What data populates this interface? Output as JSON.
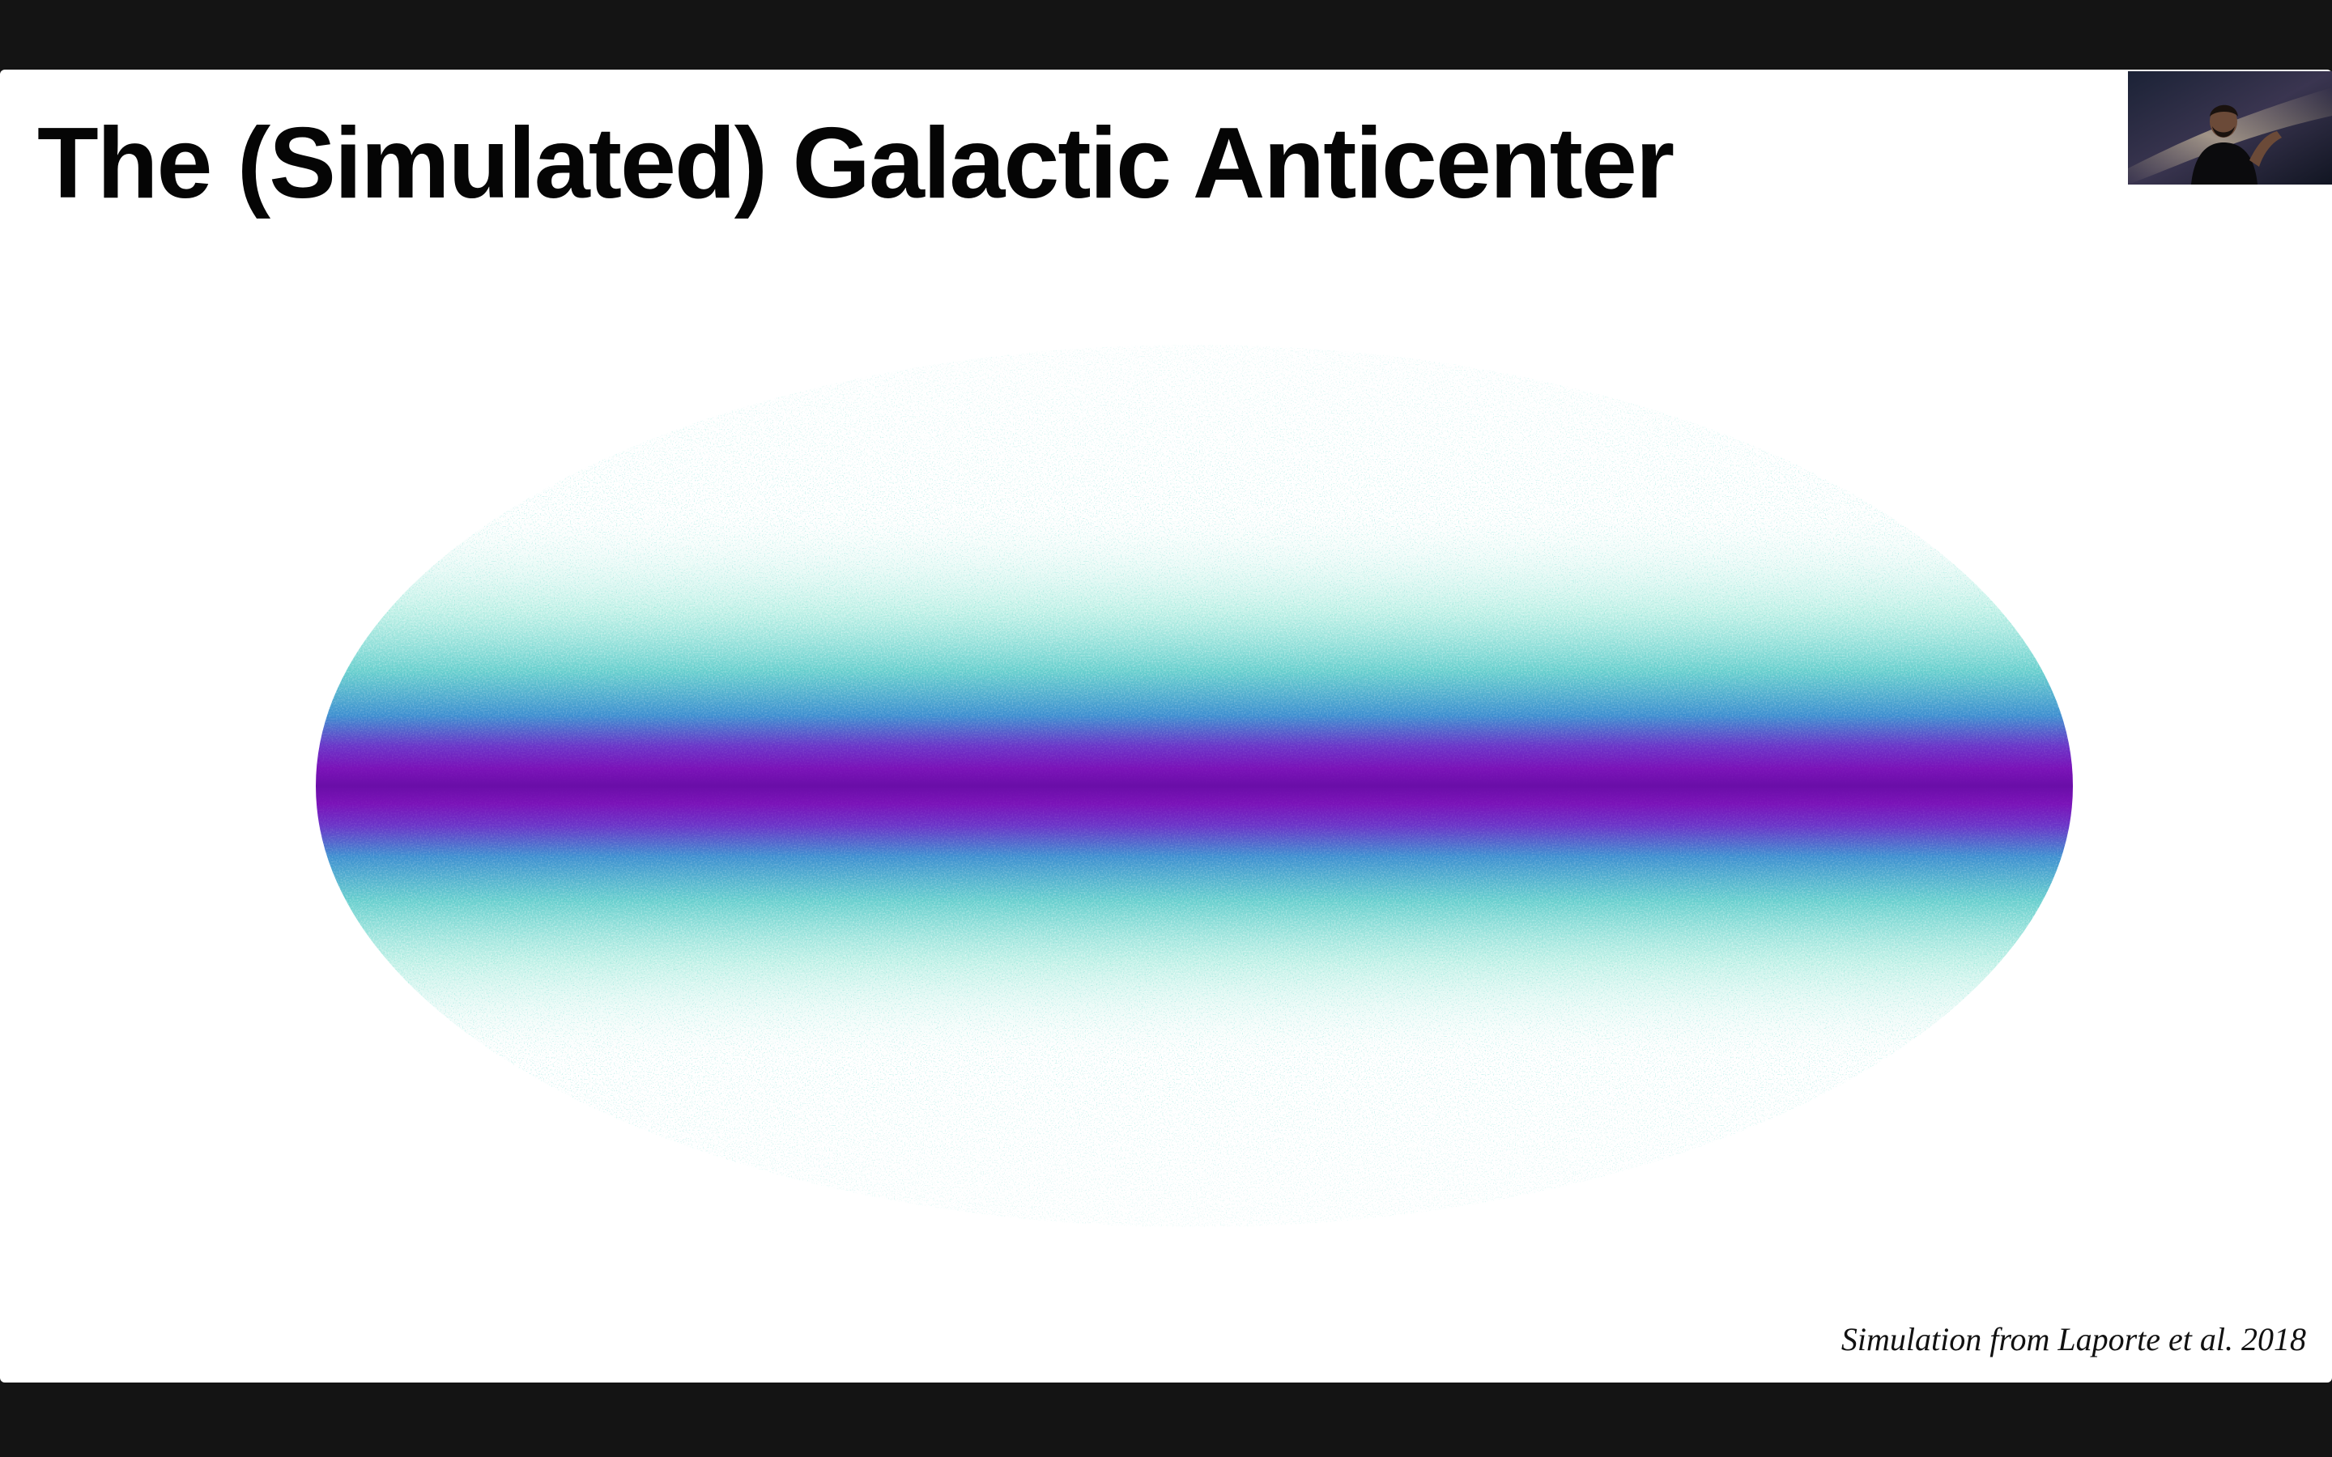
{
  "slide": {
    "title": "The (Simulated) Galactic Anticenter",
    "caption": "Simulation from Laporte et al. 2018"
  },
  "visualization": {
    "type": "mollweide-all-sky-density-map",
    "colormap": [
      "#ffffff",
      "#7fe3cf",
      "#3fa9c9",
      "#5a4fcf",
      "#7a12b8",
      "#4a0a6a",
      "#050008"
    ]
  },
  "speaker_video": {
    "icon": "participant-video-thumbnail"
  },
  "colors": {
    "frame_background": "#141414",
    "slide_background": "#ffffff",
    "title_text": "#050505"
  }
}
